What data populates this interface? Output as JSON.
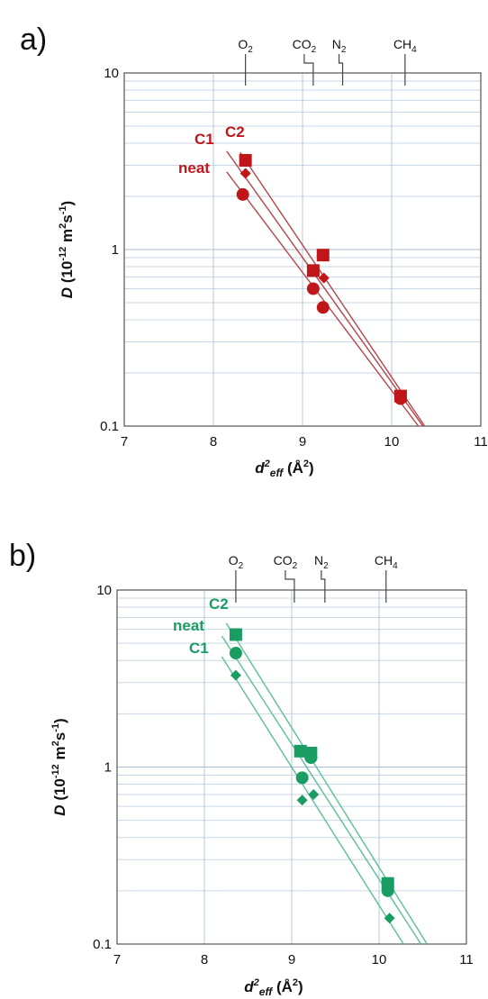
{
  "chart_data": [
    {
      "type": "scatter",
      "panel_label": "a)",
      "color": "#c0161a",
      "line_color": "#b4454a",
      "xlim": [
        7,
        11
      ],
      "ylim": [
        0.1,
        10
      ],
      "y_scale": "log",
      "grid": true,
      "x_ticks": [
        "7",
        "8",
        "9",
        "10",
        "11"
      ],
      "y_ticks": [
        "0.1",
        "1",
        "10"
      ],
      "gas_markers": [
        {
          "name": "O",
          "sub": "2",
          "x": 8.36
        },
        {
          "name": "CO",
          "sub": "2",
          "x": 9.12
        },
        {
          "name": "N",
          "sub": "2",
          "x": 9.45
        },
        {
          "name": "CH",
          "sub": "4",
          "x": 10.15
        }
      ],
      "series": [
        {
          "name": "C2",
          "marker": "square",
          "x": [
            8.36,
            9.12,
            9.23,
            10.1
          ],
          "y": [
            3.2,
            0.76,
            0.93,
            0.148
          ],
          "fit": [
            [
              8.3,
              3.55
            ],
            [
              10.37,
              0.1
            ]
          ]
        },
        {
          "name": "C1",
          "marker": "diamond",
          "x": [
            8.36,
            9.24,
            10.1
          ],
          "y": [
            2.7,
            0.69,
            0.15
          ],
          "fit": [
            [
              8.15,
              3.6
            ],
            [
              10.35,
              0.1
            ]
          ]
        },
        {
          "name": "neat",
          "marker": "circle",
          "x": [
            8.33,
            9.12,
            9.23,
            10.1
          ],
          "y": [
            2.05,
            0.6,
            0.47,
            0.143
          ],
          "fit": [
            [
              8.15,
              2.75
            ],
            [
              10.3,
              0.1
            ]
          ]
        }
      ]
    },
    {
      "type": "scatter",
      "panel_label": "b)",
      "color": "#1a9d63",
      "line_color": "#5bbf97",
      "xlim": [
        7,
        11
      ],
      "ylim": [
        0.1,
        10
      ],
      "y_scale": "log",
      "grid": true,
      "x_ticks": [
        "7",
        "8",
        "9",
        "10",
        "11"
      ],
      "y_ticks": [
        "0.1",
        "1",
        "10"
      ],
      "gas_markers": [
        {
          "name": "O",
          "sub": "2",
          "x": 8.36
        },
        {
          "name": "CO",
          "sub": "2",
          "x": 9.03
        },
        {
          "name": "N",
          "sub": "2",
          "x": 9.38
        },
        {
          "name": "CH",
          "sub": "4",
          "x": 10.08
        }
      ],
      "series": [
        {
          "name": "C2",
          "marker": "square",
          "x": [
            8.36,
            9.1,
            9.22,
            10.1
          ],
          "y": [
            5.6,
            1.23,
            1.2,
            0.22
          ],
          "fit": [
            [
              8.25,
              6.5
            ],
            [
              10.55,
              0.1
            ]
          ]
        },
        {
          "name": "neat",
          "marker": "circle",
          "x": [
            8.36,
            9.12,
            9.22,
            10.1
          ],
          "y": [
            4.4,
            0.87,
            1.13,
            0.2
          ],
          "fit": [
            [
              8.2,
              5.5
            ],
            [
              10.48,
              0.1
            ]
          ]
        },
        {
          "name": "C1",
          "marker": "diamond",
          "x": [
            8.36,
            9.12,
            9.25,
            10.12
          ],
          "y": [
            3.3,
            0.65,
            0.7,
            0.14
          ],
          "fit": [
            [
              8.2,
              4.2
            ],
            [
              10.28,
              0.1
            ]
          ]
        }
      ]
    }
  ],
  "labels": {
    "ylabel_main": "D",
    "ylabel_open": " (10",
    "ylabel_exp": "-12",
    "ylabel_unit": " m",
    "ylabel_sq": "2",
    "ylabel_s": "s",
    "ylabel_sexp": "-1",
    "ylabel_close": ")",
    "xlabel_d": "d",
    "xlabel_sup": "2",
    "xlabel_sub": "eff",
    "xlabel_unit": " (Å",
    "xlabel_unitsup": "2",
    "xlabel_close": ")"
  }
}
